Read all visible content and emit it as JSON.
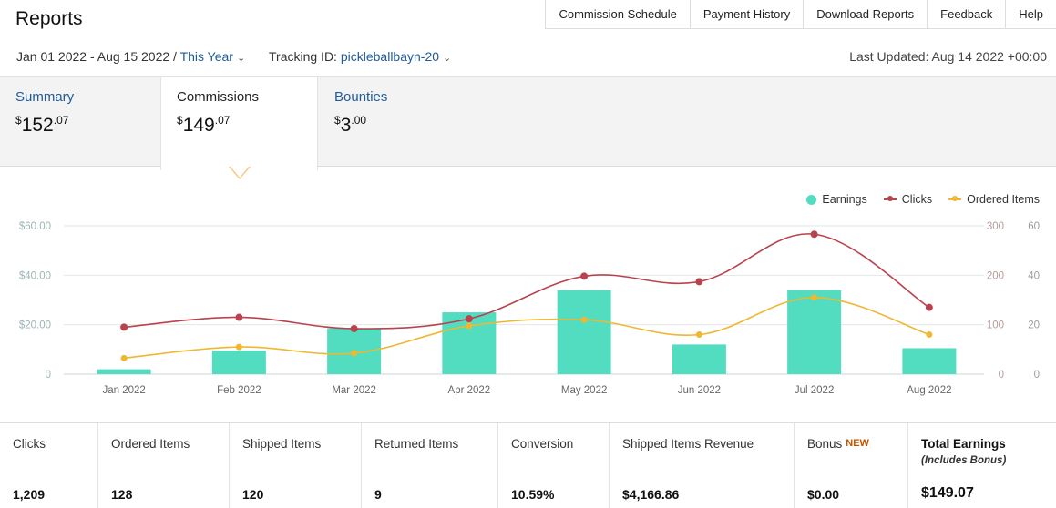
{
  "header": {
    "title": "Reports",
    "nav": [
      "Commission Schedule",
      "Payment History",
      "Download Reports",
      "Feedback",
      "Help"
    ]
  },
  "filters": {
    "date_range": "Jan 01 2022 - Aug 15 2022 /",
    "period": "This Year",
    "tracking_label": "Tracking ID:",
    "tracking_id": "pickleballbayn-20",
    "last_updated": "Last Updated: Aug 14 2022 +00:00"
  },
  "tabs": [
    {
      "label": "Summary",
      "currency": "$",
      "whole": "152",
      "cents": ".07"
    },
    {
      "label": "Commissions",
      "currency": "$",
      "whole": "149",
      "cents": ".07"
    },
    {
      "label": "Bounties",
      "currency": "$",
      "whole": "3",
      "cents": ".00"
    }
  ],
  "chart_data": {
    "type": "bar",
    "categories": [
      "Jan 2022",
      "Feb 2022",
      "Mar 2022",
      "Apr 2022",
      "May 2022",
      "Jun 2022",
      "Jul 2022",
      "Aug 2022"
    ],
    "series": [
      {
        "name": "Earnings",
        "type": "bar",
        "axis": "left",
        "color": "#52dcc0",
        "values": [
          2,
          9.5,
          18.5,
          25,
          34,
          12,
          34,
          10.5
        ]
      },
      {
        "name": "Clicks",
        "type": "line",
        "axis": "right1",
        "color": "#b8434f",
        "values": [
          95,
          115,
          92,
          112,
          198,
          187,
          283,
          135
        ]
      },
      {
        "name": "Ordered Items",
        "type": "line",
        "axis": "right2",
        "color": "#f0b731",
        "values": [
          6.5,
          11,
          8.5,
          19.5,
          22,
          16,
          31,
          16
        ]
      }
    ],
    "left_axis": {
      "ylim": [
        0,
        60
      ],
      "ticks": [
        "0",
        "$20.00",
        "$40.00",
        "$60.00"
      ]
    },
    "right1_axis": {
      "ylim": [
        0,
        300
      ],
      "ticks": [
        "0",
        "100",
        "200",
        "300"
      ]
    },
    "right2_axis": {
      "ylim": [
        0,
        60
      ],
      "ticks": [
        "0",
        "20",
        "40",
        "60"
      ]
    },
    "grid": true,
    "legend": "top-right"
  },
  "stats": [
    {
      "label": "Clicks",
      "value": "1,209"
    },
    {
      "label": "Ordered Items",
      "value": "128"
    },
    {
      "label": "Shipped Items",
      "value": "120"
    },
    {
      "label": "Returned Items",
      "value": "9"
    },
    {
      "label": "Conversion",
      "value": "10.59%"
    },
    {
      "label": "Shipped Items Revenue",
      "value": "$4,166.86"
    },
    {
      "label": "Bonus",
      "badge": "NEW",
      "value": "$0.00"
    },
    {
      "label": "Total Earnings",
      "sublabel": "(Includes Bonus)",
      "value": "$149.07"
    }
  ]
}
